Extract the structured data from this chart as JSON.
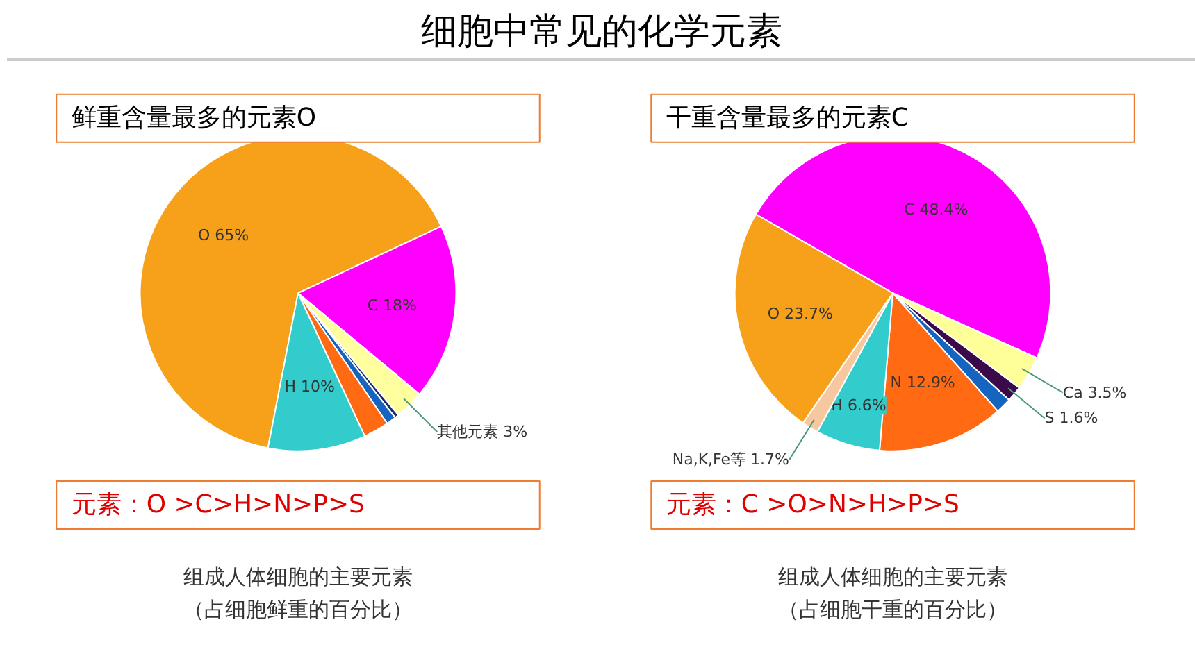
{
  "chart_data": [
    {
      "type": "pie",
      "title": "细胞中常见的化学元素",
      "subtitle": "组成人体细胞的主要元素（占细胞鲜重的百分比）",
      "categories": [
        "O",
        "C",
        "其他元素",
        null,
        null,
        null,
        "H"
      ],
      "values": [
        65,
        18,
        3,
        0.4,
        1.0,
        2.6,
        10
      ],
      "value_labels": [
        "65%",
        "18%",
        "3%",
        null,
        null,
        null,
        "10%"
      ],
      "colors": [
        "#f7a11a",
        "#ff00ff",
        "#ffffa0",
        "#1f2a6b",
        "#1565c0",
        "#ff6a13",
        "#33cccc"
      ],
      "annotations": [
        "鲜重含量最多的元素O",
        "元素：O >C>H>N>P>S"
      ],
      "legend": false
    },
    {
      "type": "pie",
      "subtitle": "组成人体细胞的主要元素（占细胞干重的百分比）",
      "categories": [
        "C",
        "Ca",
        "S",
        null,
        "N",
        "H",
        "Na,K,Fe等",
        "O"
      ],
      "values": [
        48.4,
        3.5,
        1.6,
        1.6,
        12.9,
        6.6,
        1.7,
        23.7
      ],
      "value_labels": [
        "48.4%",
        "3.5%",
        "1.6%",
        null,
        "12.9%",
        "6.6%",
        "1.7%",
        "23.7%"
      ],
      "colors": [
        "#ff00ff",
        "#ffff99",
        "#3a0a4a",
        "#1565c0",
        "#ff6a13",
        "#33cccc",
        "#f7c8a0",
        "#f7a11a"
      ],
      "annotations": [
        "干重含量最多的元素C",
        "元素：C >O>N>H>P>S"
      ],
      "legend": false
    }
  ]
}
